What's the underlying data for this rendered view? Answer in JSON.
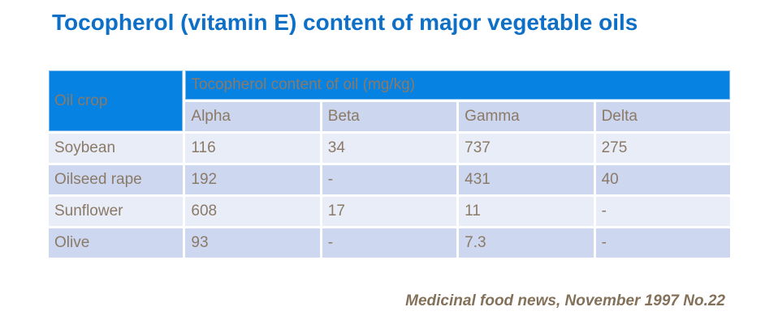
{
  "title": "Tocopherol (vitamin E) content of major vegetable oils",
  "table": {
    "corner_header": "Oil crop",
    "group_header": "Tocopherol content of oil (mg/kg)",
    "sub_headers": [
      "Alpha",
      "Beta",
      "Gamma",
      "Delta"
    ],
    "rows": [
      {
        "crop": "Soybean",
        "values": [
          "116",
          "34",
          "737",
          "275"
        ]
      },
      {
        "crop": "Oilseed rape",
        "values": [
          "192",
          "-",
          "431",
          "40"
        ]
      },
      {
        "crop": "Sunflower",
        "values": [
          "608",
          "17",
          "11",
          "-"
        ]
      },
      {
        "crop": "Olive",
        "values": [
          "93",
          "-",
          "7.3",
          "-"
        ]
      }
    ]
  },
  "footer": {
    "citation": "Medicinal food news, November 1997 No.22"
  },
  "colors": {
    "title_text": "#0d6fc6",
    "header_bg": "#0682e2",
    "header_edge": "#7ab7ec",
    "header_text": "#ffffff",
    "subheader_bg": "#ccd6ee",
    "row_light_bg": "#e9edf8",
    "row_dark_bg": "#cdd8f0",
    "cell_text": "#8a7a67",
    "citation_text": "#84715a"
  }
}
